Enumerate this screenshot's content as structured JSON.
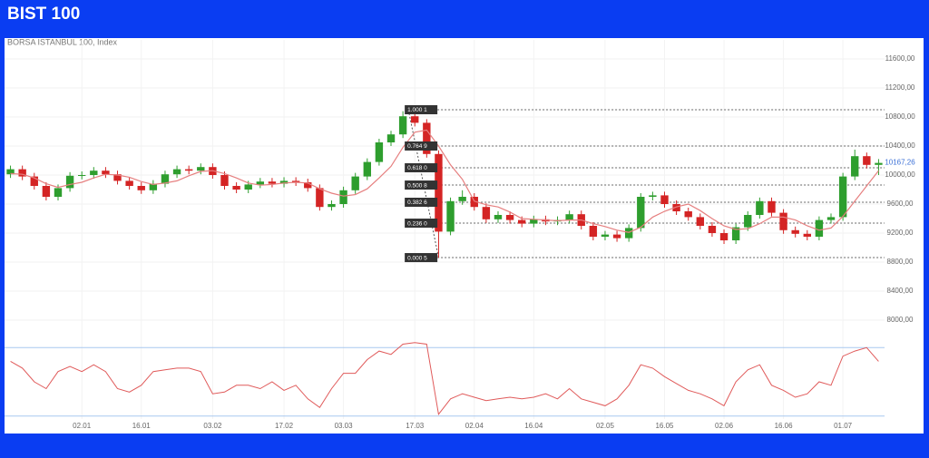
{
  "header": {
    "title": "BIST 100"
  },
  "chart_data": {
    "type": "candlestick",
    "subtitle": "BORSA ISTANBUL 100, Index",
    "categories": [
      null,
      null,
      null,
      null,
      null,
      null,
      "02.01",
      null,
      null,
      null,
      null,
      "16.01",
      null,
      null,
      null,
      null,
      null,
      "03.02",
      null,
      null,
      null,
      null,
      null,
      "17.02",
      null,
      null,
      null,
      null,
      "03.03",
      null,
      null,
      null,
      null,
      null,
      "17.03",
      null,
      null,
      null,
      null,
      "02.04",
      null,
      null,
      null,
      null,
      "16.04",
      null,
      null,
      null,
      null,
      null,
      "02.05",
      null,
      null,
      null,
      null,
      "16.05",
      null,
      null,
      null,
      null,
      "02.06",
      null,
      null,
      null,
      null,
      "16.06",
      null,
      null,
      null,
      null,
      "01.07",
      null,
      null,
      null
    ],
    "open": [
      10010,
      10080,
      9980,
      9850,
      9700,
      9820,
      9990,
      10000,
      10060,
      10010,
      9920,
      9850,
      9790,
      9880,
      10010,
      10080,
      10060,
      10110,
      10000,
      9850,
      9800,
      9870,
      9910,
      9880,
      9920,
      9900,
      9820,
      9560,
      9600,
      9790,
      9980,
      10180,
      10450,
      10560,
      10810,
      10720,
      10290,
      9220,
      9640,
      9700,
      9560,
      9390,
      9450,
      9380,
      9330,
      9390,
      9360,
      9380,
      9460,
      9300,
      9150,
      9180,
      9130,
      9270,
      9700,
      9720,
      9600,
      9500,
      9420,
      9300,
      9200,
      9100,
      9280,
      9450,
      9640,
      9480,
      9240,
      9190,
      9150,
      9380,
      9420,
      9980,
      10260,
      10140
    ],
    "high": [
      10130,
      10130,
      10030,
      9900,
      9870,
      10040,
      10050,
      10110,
      10110,
      10060,
      9970,
      9900,
      9930,
      10060,
      10130,
      10130,
      10160,
      10160,
      10050,
      9900,
      9920,
      9960,
      9960,
      9970,
      9970,
      9950,
      9870,
      9650,
      9840,
      10030,
      10230,
      10500,
      10610,
      10880,
      10860,
      10770,
      10340,
      9690,
      9790,
      9750,
      9610,
      9500,
      9500,
      9430,
      9440,
      9440,
      9430,
      9510,
      9510,
      9350,
      9230,
      9230,
      9320,
      9750,
      9770,
      9770,
      9650,
      9550,
      9470,
      9350,
      9250,
      9330,
      9500,
      9690,
      9690,
      9530,
      9290,
      9240,
      9430,
      9470,
      10030,
      10350,
      10310,
      10220
    ],
    "low": [
      9960,
      9930,
      9800,
      9650,
      9650,
      9770,
      9940,
      9950,
      9960,
      9870,
      9800,
      9740,
      9740,
      9830,
      9960,
      10010,
      10010,
      9950,
      9800,
      9750,
      9750,
      9820,
      9830,
      9830,
      9850,
      9770,
      9510,
      9510,
      9550,
      9740,
      9930,
      10130,
      10400,
      10510,
      10670,
      10240,
      8860,
      9170,
      9590,
      9510,
      9340,
      9340,
      9330,
      9280,
      9280,
      9310,
      9310,
      9330,
      9250,
      9100,
      9100,
      9080,
      9080,
      9220,
      9650,
      9550,
      9450,
      9370,
      9250,
      9150,
      9050,
      9050,
      9230,
      9400,
      9430,
      9190,
      9140,
      9100,
      9100,
      9330,
      9370,
      9930,
      10090,
      10000
    ],
    "close": [
      10080,
      9980,
      9850,
      9700,
      9820,
      9990,
      10000,
      10060,
      10010,
      9920,
      9850,
      9790,
      9880,
      10010,
      10080,
      10060,
      10110,
      10000,
      9850,
      9800,
      9870,
      9910,
      9880,
      9920,
      9900,
      9820,
      9560,
      9600,
      9790,
      9980,
      10180,
      10450,
      10560,
      10810,
      10720,
      10290,
      9220,
      9640,
      9700,
      9560,
      9390,
      9450,
      9380,
      9330,
      9390,
      9360,
      9380,
      9460,
      9300,
      9150,
      9180,
      9130,
      9270,
      9700,
      9720,
      9600,
      9500,
      9420,
      9300,
      9200,
      9100,
      9280,
      9450,
      9640,
      9480,
      9240,
      9190,
      9150,
      9380,
      9420,
      9980,
      10260,
      10140,
      10167.26
    ],
    "up_color": "#2e9e2e",
    "down_color": "#d42424",
    "ma": {
      "color": "#e67f7f",
      "values": [
        10020,
        10010,
        9960,
        9880,
        9830,
        9870,
        9900,
        9960,
        10010,
        10000,
        9970,
        9910,
        9870,
        9890,
        9920,
        9990,
        10050,
        10060,
        10020,
        9960,
        9890,
        9860,
        9870,
        9890,
        9900,
        9890,
        9810,
        9750,
        9710,
        9730,
        9810,
        9960,
        10120,
        10380,
        10590,
        10620,
        10400,
        10140,
        9940,
        9640,
        9590,
        9560,
        9490,
        9400,
        9390,
        9380,
        9370,
        9380,
        9380,
        9330,
        9290,
        9240,
        9210,
        9280,
        9420,
        9500,
        9560,
        9600,
        9510,
        9400,
        9300,
        9250,
        9260,
        9330,
        9420,
        9420,
        9380,
        9300,
        9240,
        9270,
        9430,
        9640,
        9850,
        10060
      ]
    },
    "ylim": [
      7700,
      11800
    ],
    "yticks": [
      {
        "value": 8000,
        "label": "8000,00"
      },
      {
        "value": 8400,
        "label": "8400,00"
      },
      {
        "value": 8800,
        "label": "8800,00"
      },
      {
        "value": 9200,
        "label": "9200,00"
      },
      {
        "value": 9600,
        "label": "9600,00"
      },
      {
        "value": 10000,
        "label": "10000,00"
      },
      {
        "value": 10400,
        "label": "10400,00"
      },
      {
        "value": 10800,
        "label": "10800,00"
      },
      {
        "value": 11200,
        "label": "11200,00"
      },
      {
        "value": 11600,
        "label": "11600,00"
      }
    ],
    "grid": true,
    "last_price": {
      "value": 10167.26,
      "label": "10167,26"
    },
    "fibonacci": {
      "levels": [
        {
          "value": 10900,
          "label": "1.000 1"
        },
        {
          "value": 10400,
          "label": "0.764 9"
        },
        {
          "value": 10100,
          "label": "0.618 0"
        },
        {
          "value": 9862,
          "label": "0.500 8"
        },
        {
          "value": 9625,
          "label": "0.382 6"
        },
        {
          "value": 9337,
          "label": "0.236 0"
        },
        {
          "value": 8862,
          "label": "0.000 5"
        }
      ]
    },
    "rsi": {
      "color": "#e05a5a",
      "ylim": [
        24,
        76
      ],
      "levels": [
        30,
        70
      ],
      "values": [
        62,
        58,
        50,
        46,
        56,
        59,
        56,
        60,
        56,
        46,
        44,
        48,
        56,
        57,
        58,
        58,
        56,
        43,
        44,
        48,
        48,
        46,
        50,
        45,
        48,
        40,
        35,
        46,
        55,
        55,
        63,
        68,
        66,
        72,
        73,
        72,
        31,
        40,
        43,
        41,
        39,
        40,
        41,
        40,
        41,
        43,
        40,
        46,
        40,
        38,
        36,
        40,
        48,
        60,
        58,
        53,
        49,
        45,
        43,
        40,
        36,
        50,
        57,
        60,
        48,
        45,
        41,
        43,
        50,
        48,
        65,
        68,
        70,
        62
      ]
    }
  }
}
